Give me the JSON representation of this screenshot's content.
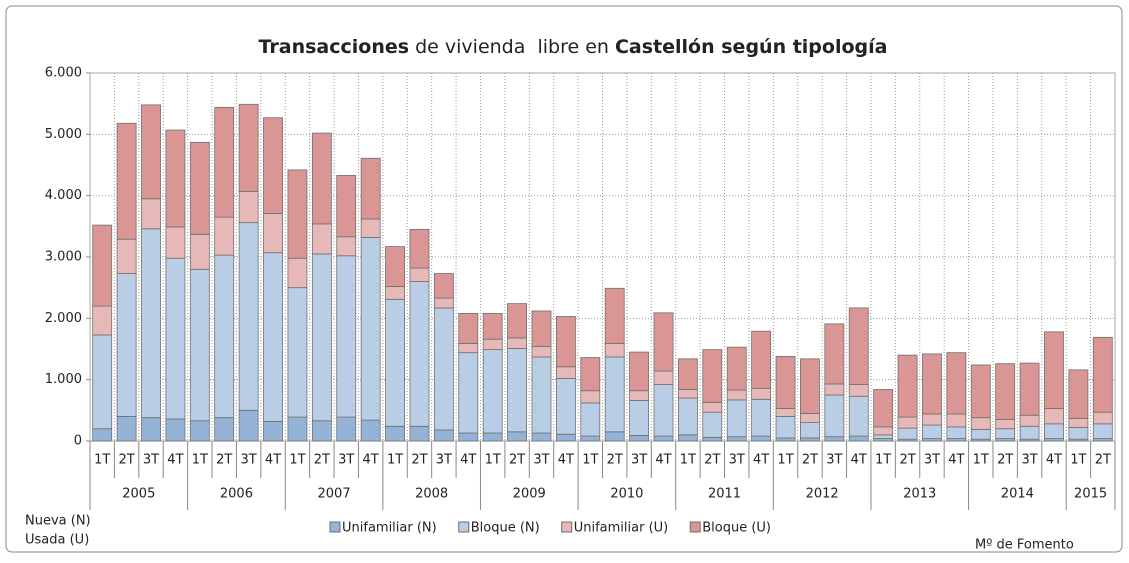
{
  "chart_data": {
    "type": "stacked_bar",
    "title_parts": [
      "Transacciones",
      " de vivienda  libre en ",
      "Castellón  según tipología"
    ],
    "categories": [
      "1T",
      "2T",
      "3T",
      "4T",
      "1T",
      "2T",
      "3T",
      "4T",
      "1T",
      "2T",
      "3T",
      "4T",
      "1T",
      "2T",
      "3T",
      "4T",
      "1T",
      "2T",
      "3T",
      "4T",
      "1T",
      "2T",
      "3T",
      "4T",
      "1T",
      "2T",
      "3T",
      "4T",
      "1T",
      "2T",
      "3T",
      "4T",
      "1T",
      "2T",
      "3T",
      "4T",
      "1T",
      "2T",
      "3T",
      "4T",
      "1T",
      "2T"
    ],
    "groups": [
      {
        "label": "2005",
        "count": 4
      },
      {
        "label": "2006",
        "count": 4
      },
      {
        "label": "2007",
        "count": 4
      },
      {
        "label": "2008",
        "count": 4
      },
      {
        "label": "2009",
        "count": 4
      },
      {
        "label": "2010",
        "count": 4
      },
      {
        "label": "2011",
        "count": 4
      },
      {
        "label": "2012",
        "count": 4
      },
      {
        "label": "2013",
        "count": 4
      },
      {
        "label": "2014",
        "count": 4
      },
      {
        "label": "2015",
        "count": 2
      }
    ],
    "series": [
      {
        "name": "Unifamiliar (N)",
        "color": "#95b3d7",
        "values": [
          200,
          400,
          380,
          360,
          330,
          380,
          500,
          320,
          390,
          330,
          390,
          340,
          240,
          240,
          180,
          130,
          130,
          150,
          130,
          110,
          80,
          150,
          90,
          80,
          100,
          60,
          70,
          80,
          50,
          50,
          70,
          80,
          40,
          30,
          40,
          40,
          30,
          40,
          30,
          40,
          30,
          40
        ]
      },
      {
        "name": "Bloque (N)",
        "color": "#b9cde5",
        "values": [
          1530,
          2330,
          3080,
          2620,
          2470,
          2650,
          3060,
          2750,
          2110,
          2720,
          2630,
          2980,
          2070,
          2360,
          1990,
          1310,
          1360,
          1360,
          1240,
          910,
          540,
          1220,
          570,
          840,
          600,
          410,
          600,
          600,
          350,
          250,
          680,
          650,
          60,
          180,
          220,
          190,
          160,
          160,
          210,
          240,
          190,
          240
        ]
      },
      {
        "name": "Unifamiliar (U)",
        "color": "#e6b9b8",
        "values": [
          470,
          560,
          490,
          510,
          570,
          620,
          510,
          640,
          480,
          490,
          310,
          300,
          210,
          220,
          160,
          150,
          170,
          170,
          170,
          190,
          200,
          220,
          160,
          220,
          140,
          160,
          160,
          180,
          130,
          150,
          180,
          190,
          130,
          180,
          180,
          210,
          190,
          150,
          180,
          250,
          150,
          190
        ]
      },
      {
        "name": "Bloque (U)",
        "color": "#d99694",
        "values": [
          1320,
          1890,
          1530,
          1580,
          1500,
          1790,
          1420,
          1560,
          1440,
          1480,
          1000,
          990,
          650,
          630,
          400,
          490,
          420,
          560,
          580,
          820,
          540,
          900,
          630,
          950,
          500,
          860,
          700,
          930,
          850,
          890,
          980,
          1250,
          610,
          1010,
          980,
          1000,
          860,
          910,
          850,
          1250,
          790,
          1220
        ]
      }
    ],
    "ylim": [
      0,
      6000
    ],
    "yticks": [
      0,
      {
        "value": 1000,
        "label": "1.000"
      },
      {
        "value": 2000,
        "label": "2.000"
      },
      {
        "value": 3000,
        "label": "3.000"
      },
      {
        "value": 4000,
        "label": "4.000"
      },
      {
        "value": 5000,
        "label": "5.000"
      },
      {
        "value": 6000,
        "label": "6.000"
      }
    ],
    "grid": true,
    "notes_left": [
      "Nueva (N)",
      "Usada (U)"
    ],
    "source": "Mº de Fomento"
  }
}
